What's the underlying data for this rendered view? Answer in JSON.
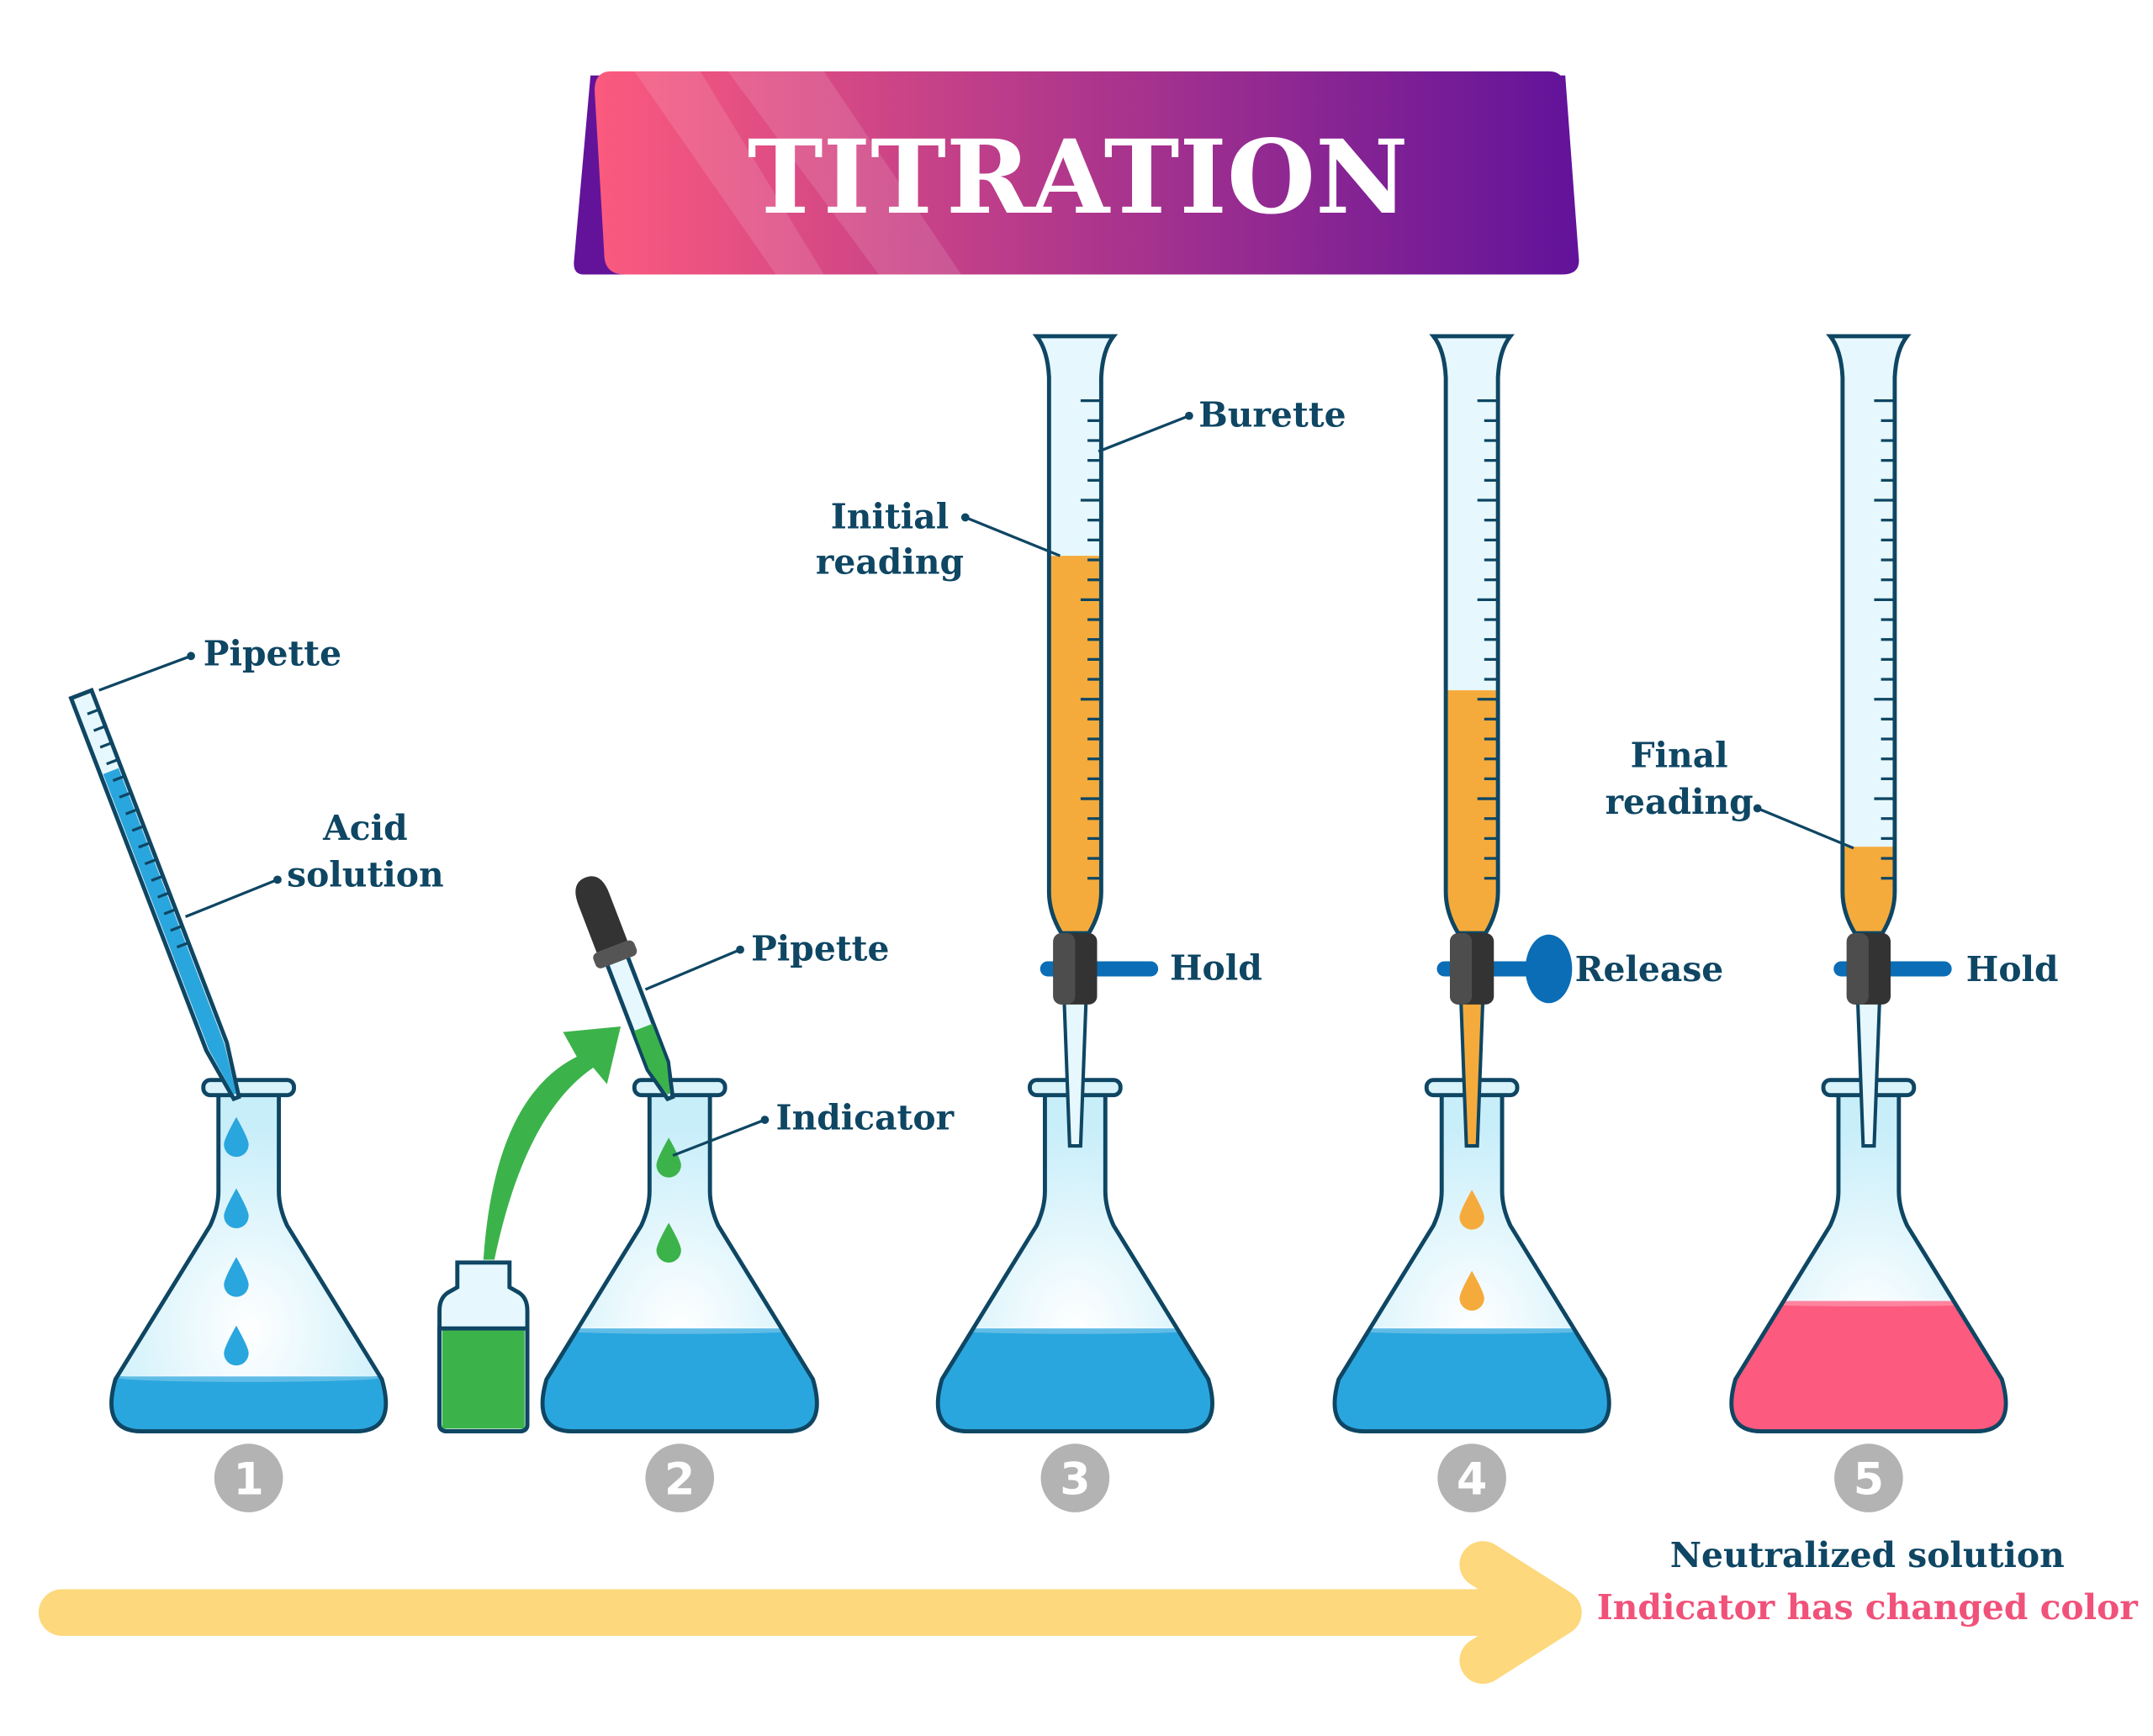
{
  "title": "TITRATION",
  "labels": {
    "pipette_1": "Pipette",
    "acid_line1": "Acid",
    "acid_line2": "solution",
    "pipette_2": "Pipette",
    "indicator": "Indicator",
    "initial_line1": "Initial",
    "initial_line2": "reading",
    "burette": "Burette",
    "hold_3": "Hold",
    "release_4": "Release",
    "final_line1": "Final",
    "final_line2": "reading",
    "hold_5": "Hold"
  },
  "steps": [
    "1",
    "2",
    "3",
    "4",
    "5"
  ],
  "result": {
    "line1": "Neutralized solution",
    "line2": "Indicator has changed color"
  },
  "colors": {
    "text": "#0e4663",
    "acid_blue": "#2aa6de",
    "titrant_orange": "#f5ab3c",
    "indicator_green": "#3bb34a",
    "neutralized_pink": "#fc5a7e",
    "arrow_yellow": "#fdd87c",
    "step_gray": "#b3b3b3",
    "title_gradient_start": "#fb5a7e",
    "title_gradient_end": "#62139a"
  }
}
